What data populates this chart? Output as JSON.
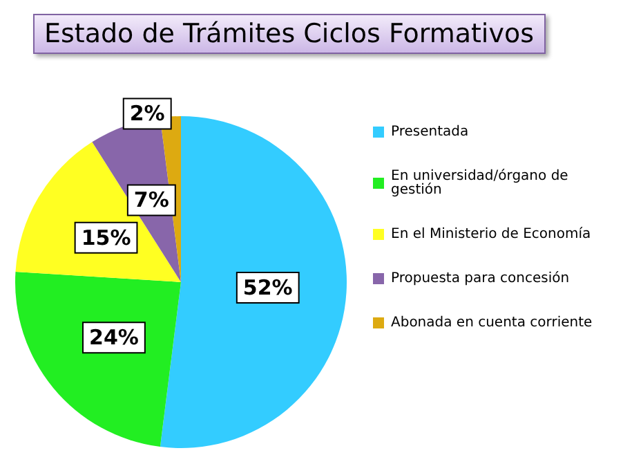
{
  "chart_data": {
    "type": "pie",
    "title": "Estado de Trámites Ciclos Formativos",
    "categories": [
      "Presentada",
      "En universidad/órgano de gestión",
      "En el Ministerio de Economía",
      "Propuesta para concesión",
      "Abonada en cuenta corriente"
    ],
    "values": [
      52,
      24,
      15,
      7,
      2
    ],
    "colors": [
      "#33ccff",
      "#22ee22",
      "#ffff22",
      "#8866aa",
      "#ddaa11"
    ],
    "value_labels": [
      "52%",
      "24%",
      "15%",
      "7%",
      "2%"
    ],
    "legend": "right"
  }
}
